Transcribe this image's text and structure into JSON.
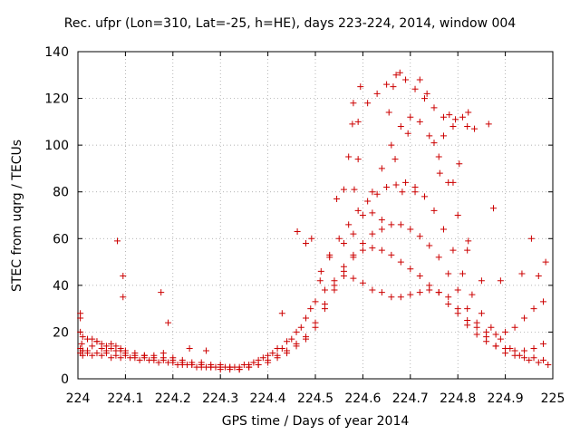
{
  "chart_data": {
    "type": "scatter",
    "title": "Rec. ufpr (Lon=310, Lat=-25, h=HE), days 223-224, 2014, window 004",
    "xlabel": "GPS time / Days of year 2014",
    "ylabel": "STEC from uqrg / TECUs",
    "xlim": [
      224,
      225
    ],
    "ylim": [
      0,
      140
    ],
    "xticks": [
      "224",
      "224.1",
      "224.2",
      "224.3",
      "224.4",
      "224.5",
      "224.6",
      "224.7",
      "224.8",
      "224.9",
      "225"
    ],
    "yticks": [
      "0",
      "20",
      "40",
      "60",
      "80",
      "100",
      "120",
      "140"
    ],
    "grid": true,
    "marker": "plus",
    "color": "#cc0000",
    "series": [
      {
        "points": [
          [
            224.005,
            28
          ],
          [
            224.005,
            26
          ],
          [
            224.008,
            15
          ],
          [
            224.01,
            12
          ],
          [
            224.02,
            11
          ],
          [
            224.03,
            14
          ],
          [
            224.04,
            16
          ],
          [
            224.05,
            13
          ],
          [
            224.06,
            12
          ],
          [
            224.07,
            15
          ],
          [
            224.08,
            14
          ],
          [
            224.09,
            13
          ],
          [
            224.1,
            12
          ],
          [
            224.12,
            11
          ],
          [
            224.14,
            10
          ],
          [
            224.16,
            10
          ],
          [
            224.18,
            11
          ],
          [
            224.2,
            9
          ],
          [
            224.22,
            8
          ],
          [
            224.24,
            7
          ],
          [
            224.26,
            7
          ],
          [
            224.28,
            6
          ],
          [
            224.3,
            6
          ],
          [
            224.32,
            5
          ],
          [
            224.34,
            5
          ],
          [
            224.36,
            6
          ],
          [
            224.38,
            8
          ],
          [
            224.4,
            10
          ],
          [
            224.42,
            13
          ],
          [
            224.44,
            16
          ],
          [
            224.46,
            20
          ],
          [
            224.48,
            26
          ],
          [
            224.5,
            33
          ],
          [
            224.52,
            38
          ],
          [
            224.54,
            42
          ],
          [
            224.56,
            44
          ],
          [
            224.58,
            43
          ],
          [
            224.6,
            41
          ],
          [
            224.62,
            38
          ],
          [
            224.64,
            37
          ],
          [
            224.66,
            35
          ],
          [
            224.68,
            35
          ],
          [
            224.7,
            36
          ],
          [
            224.72,
            37
          ],
          [
            224.74,
            38
          ],
          [
            224.76,
            37
          ],
          [
            224.78,
            35
          ],
          [
            224.8,
            30
          ],
          [
            224.82,
            25
          ],
          [
            224.84,
            22
          ],
          [
            224.86,
            20
          ],
          [
            224.88,
            19
          ],
          [
            224.9,
            20
          ],
          [
            224.92,
            22
          ],
          [
            224.94,
            26
          ],
          [
            224.96,
            30
          ],
          [
            224.98,
            33
          ],
          [
            224.005,
            20
          ],
          [
            224.01,
            18
          ],
          [
            224.02,
            17
          ],
          [
            224.03,
            17
          ],
          [
            224.04,
            16
          ],
          [
            224.05,
            15
          ],
          [
            224.06,
            14
          ],
          [
            224.07,
            13
          ],
          [
            224.08,
            12
          ],
          [
            224.09,
            12
          ],
          [
            224.1,
            11
          ],
          [
            224.12,
            10
          ],
          [
            224.14,
            10
          ],
          [
            224.16,
            9
          ],
          [
            224.18,
            9
          ],
          [
            224.2,
            8
          ],
          [
            224.22,
            7
          ],
          [
            224.24,
            6
          ],
          [
            224.26,
            6
          ],
          [
            224.28,
            5
          ],
          [
            224.3,
            5
          ],
          [
            224.32,
            5
          ],
          [
            224.34,
            4
          ],
          [
            224.36,
            5
          ],
          [
            224.38,
            6
          ],
          [
            224.4,
            8
          ],
          [
            224.42,
            10
          ],
          [
            224.44,
            12
          ],
          [
            224.46,
            15
          ],
          [
            224.48,
            18
          ],
          [
            224.5,
            24
          ],
          [
            224.52,
            32
          ],
          [
            224.54,
            40
          ],
          [
            224.56,
            48
          ],
          [
            224.58,
            53
          ],
          [
            224.6,
            55
          ],
          [
            224.62,
            56
          ],
          [
            224.64,
            55
          ],
          [
            224.66,
            53
          ],
          [
            224.68,
            50
          ],
          [
            224.7,
            47
          ],
          [
            224.72,
            44
          ],
          [
            224.74,
            40
          ],
          [
            224.76,
            37
          ],
          [
            224.78,
            32
          ],
          [
            224.8,
            28
          ],
          [
            224.82,
            23
          ],
          [
            224.84,
            19
          ],
          [
            224.86,
            16
          ],
          [
            224.88,
            14
          ],
          [
            224.9,
            13
          ],
          [
            224.92,
            12
          ],
          [
            224.94,
            12
          ],
          [
            224.96,
            13
          ],
          [
            224.98,
            15
          ],
          [
            224.005,
            13
          ],
          [
            224.01,
            12
          ],
          [
            224.02,
            12
          ],
          [
            224.04,
            11
          ],
          [
            224.06,
            11
          ],
          [
            224.08,
            10
          ],
          [
            224.1,
            10
          ],
          [
            224.12,
            9
          ],
          [
            224.14,
            9
          ],
          [
            224.16,
            8
          ],
          [
            224.18,
            8
          ],
          [
            224.2,
            7
          ],
          [
            224.22,
            6
          ],
          [
            224.24,
            6
          ],
          [
            224.26,
            5
          ],
          [
            224.28,
            5
          ],
          [
            224.3,
            4
          ],
          [
            224.32,
            4
          ],
          [
            224.34,
            4
          ],
          [
            224.36,
            5
          ],
          [
            224.38,
            6
          ],
          [
            224.4,
            7
          ],
          [
            224.42,
            9
          ],
          [
            224.44,
            11
          ],
          [
            224.46,
            14
          ],
          [
            224.48,
            17
          ],
          [
            224.5,
            22
          ],
          [
            224.52,
            30
          ],
          [
            224.54,
            38
          ],
          [
            224.56,
            46
          ],
          [
            224.58,
            52
          ],
          [
            224.6,
            58
          ],
          [
            224.62,
            62
          ],
          [
            224.64,
            64
          ],
          [
            224.66,
            66
          ],
          [
            224.68,
            66
          ],
          [
            224.7,
            64
          ],
          [
            224.72,
            61
          ],
          [
            224.74,
            57
          ],
          [
            224.76,
            52
          ],
          [
            224.78,
            45
          ],
          [
            224.8,
            38
          ],
          [
            224.82,
            30
          ],
          [
            224.84,
            24
          ],
          [
            224.86,
            18
          ],
          [
            224.88,
            14
          ],
          [
            224.9,
            11
          ],
          [
            224.92,
            10
          ],
          [
            224.94,
            9
          ],
          [
            224.96,
            9
          ],
          [
            224.98,
            8
          ],
          [
            224.005,
            11
          ],
          [
            224.01,
            10
          ],
          [
            224.03,
            10
          ],
          [
            224.05,
            10
          ],
          [
            224.07,
            9
          ],
          [
            224.09,
            9
          ],
          [
            224.11,
            9
          ],
          [
            224.13,
            8
          ],
          [
            224.15,
            8
          ],
          [
            224.17,
            7
          ],
          [
            224.19,
            7
          ],
          [
            224.21,
            6
          ],
          [
            224.23,
            6
          ],
          [
            224.25,
            5
          ],
          [
            224.27,
            5
          ],
          [
            224.29,
            5
          ],
          [
            224.31,
            5
          ],
          [
            224.33,
            5
          ],
          [
            224.35,
            6
          ],
          [
            224.37,
            7
          ],
          [
            224.39,
            9
          ],
          [
            224.41,
            11
          ],
          [
            224.43,
            13
          ],
          [
            224.45,
            17
          ],
          [
            224.47,
            22
          ],
          [
            224.49,
            30
          ],
          [
            224.51,
            42
          ],
          [
            224.53,
            53
          ],
          [
            224.55,
            60
          ],
          [
            224.57,
            66
          ],
          [
            224.59,
            72
          ],
          [
            224.61,
            76
          ],
          [
            224.63,
            79
          ],
          [
            224.65,
            82
          ],
          [
            224.67,
            83
          ],
          [
            224.69,
            84
          ],
          [
            224.71,
            82
          ],
          [
            224.73,
            78
          ],
          [
            224.75,
            72
          ],
          [
            224.77,
            64
          ],
          [
            224.79,
            55
          ],
          [
            224.81,
            45
          ],
          [
            224.83,
            36
          ],
          [
            224.85,
            28
          ],
          [
            224.87,
            22
          ],
          [
            224.89,
            17
          ],
          [
            224.91,
            13
          ],
          [
            224.93,
            10
          ],
          [
            224.95,
            8
          ],
          [
            224.97,
            7
          ],
          [
            224.99,
            6
          ],
          [
            224.56,
            58
          ],
          [
            224.58,
            62
          ],
          [
            224.6,
            70
          ],
          [
            224.62,
            80
          ],
          [
            224.64,
            90
          ],
          [
            224.66,
            100
          ],
          [
            224.68,
            108
          ],
          [
            224.7,
            112
          ],
          [
            224.72,
            110
          ],
          [
            224.74,
            104
          ],
          [
            224.76,
            95
          ],
          [
            224.78,
            84
          ],
          [
            224.8,
            70
          ],
          [
            224.82,
            55
          ],
          [
            224.57,
            95
          ],
          [
            224.59,
            110
          ],
          [
            224.61,
            118
          ],
          [
            224.63,
            122
          ],
          [
            224.65,
            126
          ],
          [
            224.67,
            130
          ],
          [
            224.69,
            128
          ],
          [
            224.71,
            124
          ],
          [
            224.73,
            120
          ],
          [
            224.75,
            116
          ],
          [
            224.77,
            112
          ],
          [
            224.79,
            108
          ],
          [
            224.083,
            59
          ],
          [
            224.095,
            44
          ],
          [
            224.095,
            35
          ],
          [
            224.175,
            37
          ],
          [
            224.19,
            24
          ],
          [
            224.235,
            13
          ],
          [
            224.27,
            12
          ],
          [
            224.43,
            28
          ],
          [
            224.462,
            63
          ],
          [
            224.48,
            58
          ],
          [
            224.492,
            60
          ],
          [
            224.512,
            46
          ],
          [
            224.53,
            52
          ],
          [
            224.545,
            77
          ],
          [
            224.56,
            81
          ],
          [
            224.582,
            81
          ],
          [
            224.59,
            94
          ],
          [
            224.595,
            125
          ],
          [
            224.58,
            118
          ],
          [
            224.578,
            109
          ],
          [
            224.62,
            71
          ],
          [
            224.64,
            68
          ],
          [
            224.655,
            114
          ],
          [
            224.668,
            94
          ],
          [
            224.664,
            125
          ],
          [
            224.678,
            131
          ],
          [
            224.683,
            80
          ],
          [
            224.695,
            105
          ],
          [
            224.71,
            80
          ],
          [
            224.72,
            128
          ],
          [
            224.735,
            122
          ],
          [
            224.75,
            101
          ],
          [
            224.762,
            88
          ],
          [
            224.77,
            104
          ],
          [
            224.782,
            113
          ],
          [
            224.79,
            84
          ],
          [
            224.795,
            111
          ],
          [
            224.803,
            92
          ],
          [
            224.81,
            112
          ],
          [
            224.82,
            108
          ],
          [
            224.822,
            114
          ],
          [
            224.835,
            107
          ],
          [
            224.822,
            59
          ],
          [
            224.85,
            42
          ],
          [
            224.865,
            109
          ],
          [
            224.875,
            73
          ],
          [
            224.89,
            42
          ],
          [
            224.935,
            45
          ],
          [
            224.955,
            60
          ],
          [
            224.97,
            44
          ],
          [
            224.985,
            50
          ]
        ]
      }
    ]
  }
}
